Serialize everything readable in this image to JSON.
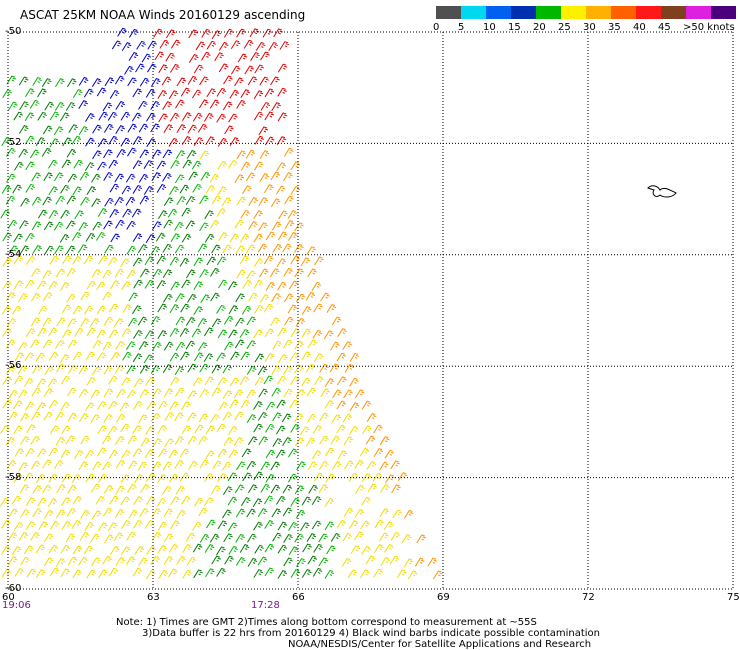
{
  "title": "ASCAT 25KM NOAA Winds 20160129 ascending",
  "legend": {
    "labels": [
      "0",
      "5",
      "10",
      "15",
      "20",
      "25",
      "30",
      "35",
      "40",
      "45",
      ">50 knots"
    ],
    "colors": [
      "#505050",
      "#00d8f0",
      "#0060f0",
      "#0030b0",
      "#00b800",
      "#fff000",
      "#ffb000",
      "#ff6000",
      "#ff1818",
      "#804020",
      "#e020e0",
      "#4a007a"
    ]
  },
  "map": {
    "x_ticks": [
      "60",
      "63",
      "66",
      "69",
      "72",
      "75"
    ],
    "y_ticks": [
      "-50",
      "-52",
      "-54",
      "-56",
      "-58",
      "-60"
    ],
    "lon_range": [
      60,
      75
    ],
    "lat_range": [
      -60,
      -50
    ],
    "grid": "dotted",
    "swath_colors": {
      "green_dark": "#007a00",
      "green": "#00b400",
      "blue": "#0000c8",
      "yellow": "#f2dc00",
      "orange": "#ff9400",
      "red": "#e00000"
    }
  },
  "times": [
    "19:06",
    "17:28"
  ],
  "notes": [
    "Note: 1) Times are GMT 2)Times along bottom correspond to measurement at ~55S",
    "3)Data buffer is 22 hrs from 20160129 4) Black wind barbs indicate possible contamination",
    "NOAA/NESDIS/Center for Satellite Applications and Research"
  ]
}
